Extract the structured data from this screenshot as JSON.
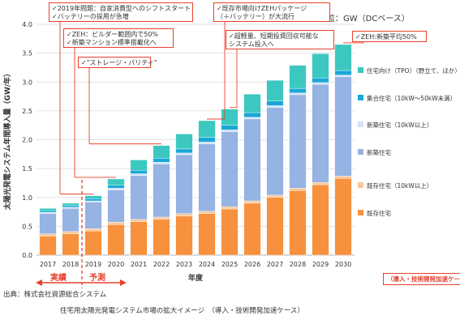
{
  "chart_data": {
    "type": "bar",
    "stacked": true,
    "title": "",
    "unit_label": "単位：GW（DCベース）",
    "ylabel": "太陽光発電システム年間導入量（GW/年）",
    "xlabel": "年度",
    "ylim": [
      0,
      4.0
    ],
    "yticks": [
      "0.0",
      "0.5",
      "1.0",
      "1.5",
      "2.0",
      "2.5",
      "3.0",
      "3.5",
      "4.0"
    ],
    "grid": true,
    "categories": [
      "2017",
      "2018",
      "2019",
      "2020",
      "2021",
      "2022",
      "2023",
      "2024",
      "2025",
      "2026",
      "2027",
      "2028",
      "2029",
      "2030"
    ],
    "series": [
      {
        "name": "既存住宅",
        "color": "#f7913d",
        "values": [
          0.33,
          0.37,
          0.42,
          0.53,
          0.58,
          0.62,
          0.68,
          0.72,
          0.8,
          0.9,
          1.0,
          1.12,
          1.22,
          1.33
        ]
      },
      {
        "name": "既存住宅（10kW以上）",
        "color": "#f9c99a",
        "values": [
          0.04,
          0.04,
          0.04,
          0.04,
          0.04,
          0.04,
          0.04,
          0.04,
          0.04,
          0.04,
          0.04,
          0.04,
          0.04,
          0.04
        ]
      },
      {
        "name": "新築住宅",
        "color": "#95b3e3",
        "values": [
          0.35,
          0.4,
          0.46,
          0.56,
          0.76,
          0.92,
          1.02,
          1.17,
          1.3,
          1.42,
          1.52,
          1.62,
          1.7,
          1.72
        ]
      },
      {
        "name": "新築住宅（10kW以上）",
        "color": "#d3e2f6",
        "values": [
          0.02,
          0.02,
          0.02,
          0.03,
          0.03,
          0.03,
          0.03,
          0.03,
          0.03,
          0.03,
          0.03,
          0.03,
          0.03,
          0.03
        ]
      },
      {
        "name": "集合住宅（10kW～50kW未満）",
        "color": "#1aa8d8",
        "values": [
          0.03,
          0.03,
          0.04,
          0.05,
          0.06,
          0.07,
          0.07,
          0.08,
          0.08,
          0.08,
          0.08,
          0.08,
          0.08,
          0.08
        ]
      },
      {
        "name": "住宅向け（TPO）（野立て、ほか）",
        "color": "#3cc8c0",
        "values": [
          0.04,
          0.04,
          0.05,
          0.11,
          0.18,
          0.22,
          0.26,
          0.29,
          0.28,
          0.32,
          0.36,
          0.4,
          0.42,
          0.45
        ]
      }
    ],
    "legend_position": "right",
    "callouts": [
      {
        "lines": [
          "✓2019年問題：自家消費型へのシフトスタート",
          "✓バッテリーの採用が急増"
        ],
        "target": "2019"
      },
      {
        "lines": [
          "✓ZEH：ビルダー範囲内で50%",
          "✓新築マンション標準搭載化へ"
        ],
        "target": "2020"
      },
      {
        "lines": [
          "✓\"ストレージ・パリティ\""
        ],
        "target": "2022"
      },
      {
        "lines": [
          "✓既存市場向けZEHパッケージ",
          "（＋バッテリー）が大流行"
        ],
        "target": "2024"
      },
      {
        "lines": [
          "✓超軽量、短期投資回収可能な",
          "システム投入へ"
        ],
        "target": "2025"
      },
      {
        "lines": [
          "✓ZEH:新築平均50%"
        ],
        "target": "2030"
      }
    ],
    "phase_labels": {
      "actual": "実績",
      "forecast": "予測"
    },
    "case_label": "（導入・技術開発加速ケース）"
  },
  "footer": {
    "source": "出典：株式会社資源総合システム",
    "caption": "住宅用太陽光発電システム市場の拡大イメージ　（導入・技術開発加速ケース）"
  }
}
